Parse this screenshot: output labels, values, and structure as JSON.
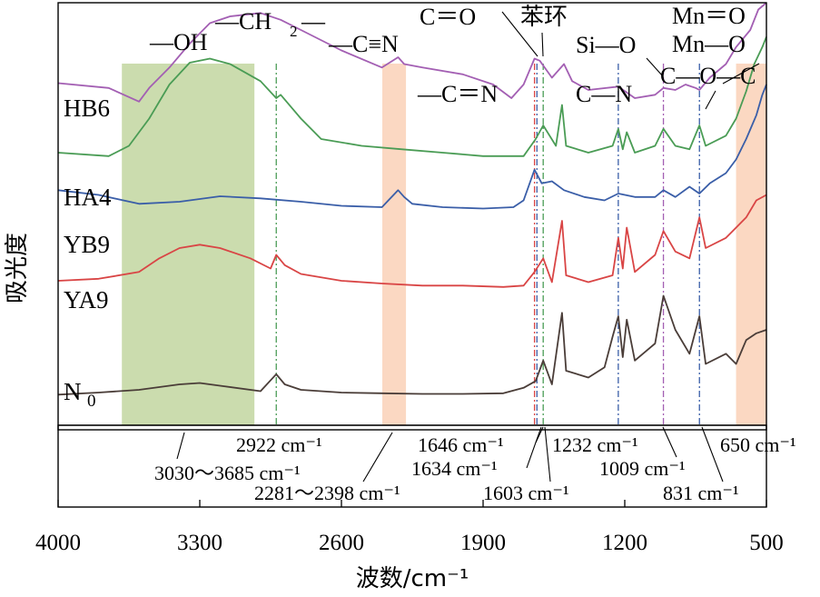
{
  "chart_data": {
    "type": "line",
    "title": "",
    "xlabel": "波数/cm⁻¹",
    "ylabel": "吸光度",
    "x_ticks": [
      4000,
      3300,
      2600,
      1900,
      1200,
      500
    ],
    "x_tick_labels": [
      "4000",
      "3300",
      "2600",
      "1900",
      "1200",
      "500"
    ],
    "xlim": [
      4000,
      500
    ],
    "x_reversed": true,
    "y_units": "arbitrary (offset absorbance)",
    "ylim": [
      0,
      6.2
    ],
    "series": [
      {
        "name": "HB6",
        "label": "HB6",
        "color": "#a35fb3",
        "points": [
          [
            4000,
            5.02
          ],
          [
            3750,
            4.95
          ],
          [
            3600,
            4.75
          ],
          [
            3550,
            4.95
          ],
          [
            3450,
            5.25
          ],
          [
            3350,
            5.6
          ],
          [
            3250,
            5.9
          ],
          [
            3150,
            6.0
          ],
          [
            3000,
            6.05
          ],
          [
            2900,
            5.95
          ],
          [
            2800,
            5.8
          ],
          [
            2600,
            5.5
          ],
          [
            2400,
            5.25
          ],
          [
            2320,
            5.4
          ],
          [
            2290,
            5.3
          ],
          [
            2200,
            5.25
          ],
          [
            2000,
            5.15
          ],
          [
            1850,
            5.0
          ],
          [
            1760,
            4.8
          ],
          [
            1700,
            5.0
          ],
          [
            1646,
            5.38
          ],
          [
            1620,
            5.35
          ],
          [
            1560,
            5.1
          ],
          [
            1500,
            5.3
          ],
          [
            1460,
            5.05
          ],
          [
            1380,
            4.92
          ],
          [
            1232,
            4.97
          ],
          [
            1150,
            4.8
          ],
          [
            1050,
            4.85
          ],
          [
            1009,
            4.95
          ],
          [
            950,
            4.92
          ],
          [
            900,
            5.0
          ],
          [
            850,
            4.95
          ],
          [
            831,
            4.92
          ],
          [
            780,
            5.1
          ],
          [
            700,
            5.3
          ],
          [
            650,
            5.55
          ],
          [
            580,
            5.8
          ],
          [
            540,
            6.1
          ],
          [
            500,
            6.2
          ]
        ]
      },
      {
        "name": "HA4",
        "label": "HA4",
        "color": "#4a9c55",
        "points": [
          [
            4000,
            4.0
          ],
          [
            3750,
            3.95
          ],
          [
            3650,
            4.1
          ],
          [
            3550,
            4.5
          ],
          [
            3450,
            5.0
          ],
          [
            3350,
            5.32
          ],
          [
            3250,
            5.38
          ],
          [
            3150,
            5.3
          ],
          [
            3000,
            5.05
          ],
          [
            2922,
            4.8
          ],
          [
            2900,
            4.85
          ],
          [
            2800,
            4.5
          ],
          [
            2700,
            4.2
          ],
          [
            2500,
            4.1
          ],
          [
            2300,
            4.05
          ],
          [
            2100,
            4.0
          ],
          [
            1900,
            3.95
          ],
          [
            1700,
            3.95
          ],
          [
            1640,
            4.2
          ],
          [
            1603,
            4.4
          ],
          [
            1540,
            4.1
          ],
          [
            1510,
            4.7
          ],
          [
            1490,
            4.1
          ],
          [
            1380,
            4.0
          ],
          [
            1260,
            4.1
          ],
          [
            1232,
            4.35
          ],
          [
            1210,
            4.05
          ],
          [
            1190,
            4.3
          ],
          [
            1150,
            4.0
          ],
          [
            1050,
            4.1
          ],
          [
            1009,
            4.35
          ],
          [
            950,
            4.1
          ],
          [
            880,
            4.05
          ],
          [
            831,
            4.4
          ],
          [
            800,
            4.1
          ],
          [
            700,
            4.25
          ],
          [
            650,
            4.5
          ],
          [
            600,
            4.9
          ],
          [
            560,
            5.3
          ],
          [
            520,
            5.55
          ],
          [
            500,
            5.7
          ]
        ]
      },
      {
        "name": "YB9",
        "label": "YB9",
        "color": "#3a5ea8",
        "points": [
          [
            4000,
            3.45
          ],
          [
            3800,
            3.38
          ],
          [
            3600,
            3.25
          ],
          [
            3400,
            3.28
          ],
          [
            3200,
            3.36
          ],
          [
            3000,
            3.33
          ],
          [
            2800,
            3.28
          ],
          [
            2600,
            3.22
          ],
          [
            2400,
            3.2
          ],
          [
            2320,
            3.45
          ],
          [
            2290,
            3.35
          ],
          [
            2250,
            3.25
          ],
          [
            2100,
            3.2
          ],
          [
            1900,
            3.18
          ],
          [
            1750,
            3.2
          ],
          [
            1700,
            3.3
          ],
          [
            1646,
            3.75
          ],
          [
            1610,
            3.55
          ],
          [
            1560,
            3.58
          ],
          [
            1500,
            3.45
          ],
          [
            1400,
            3.35
          ],
          [
            1300,
            3.3
          ],
          [
            1232,
            3.4
          ],
          [
            1150,
            3.35
          ],
          [
            1050,
            3.35
          ],
          [
            1009,
            3.45
          ],
          [
            950,
            3.35
          ],
          [
            880,
            3.5
          ],
          [
            831,
            3.4
          ],
          [
            780,
            3.55
          ],
          [
            700,
            3.7
          ],
          [
            650,
            3.9
          ],
          [
            600,
            4.2
          ],
          [
            550,
            4.55
          ],
          [
            520,
            4.85
          ],
          [
            500,
            5.0
          ]
        ]
      },
      {
        "name": "YA9",
        "label": "YA9",
        "color": "#d94545",
        "points": [
          [
            4000,
            2.12
          ],
          [
            3800,
            2.15
          ],
          [
            3600,
            2.25
          ],
          [
            3500,
            2.45
          ],
          [
            3400,
            2.6
          ],
          [
            3300,
            2.65
          ],
          [
            3200,
            2.6
          ],
          [
            3050,
            2.45
          ],
          [
            2950,
            2.3
          ],
          [
            2922,
            2.5
          ],
          [
            2880,
            2.35
          ],
          [
            2800,
            2.22
          ],
          [
            2600,
            2.12
          ],
          [
            2400,
            2.08
          ],
          [
            2200,
            2.05
          ],
          [
            2000,
            2.05
          ],
          [
            1800,
            2.03
          ],
          [
            1700,
            2.05
          ],
          [
            1646,
            2.25
          ],
          [
            1603,
            2.45
          ],
          [
            1560,
            2.1
          ],
          [
            1510,
            3.0
          ],
          [
            1490,
            2.2
          ],
          [
            1380,
            2.1
          ],
          [
            1260,
            2.2
          ],
          [
            1232,
            2.75
          ],
          [
            1210,
            2.3
          ],
          [
            1190,
            2.9
          ],
          [
            1150,
            2.25
          ],
          [
            1050,
            2.5
          ],
          [
            1009,
            2.85
          ],
          [
            950,
            2.55
          ],
          [
            880,
            2.45
          ],
          [
            831,
            3.05
          ],
          [
            800,
            2.6
          ],
          [
            700,
            2.75
          ],
          [
            650,
            2.9
          ],
          [
            600,
            3.05
          ],
          [
            550,
            3.3
          ],
          [
            500,
            3.38
          ]
        ]
      },
      {
        "name": "N0",
        "label": "N",
        "sub": "0",
        "color": "#4a3d38",
        "points": [
          [
            4000,
            0.45
          ],
          [
            3800,
            0.48
          ],
          [
            3600,
            0.52
          ],
          [
            3400,
            0.6
          ],
          [
            3300,
            0.62
          ],
          [
            3200,
            0.58
          ],
          [
            3000,
            0.5
          ],
          [
            2922,
            0.75
          ],
          [
            2880,
            0.6
          ],
          [
            2800,
            0.52
          ],
          [
            2600,
            0.48
          ],
          [
            2400,
            0.47
          ],
          [
            2200,
            0.46
          ],
          [
            2000,
            0.46
          ],
          [
            1800,
            0.47
          ],
          [
            1700,
            0.55
          ],
          [
            1640,
            0.65
          ],
          [
            1603,
            0.95
          ],
          [
            1560,
            0.6
          ],
          [
            1510,
            1.65
          ],
          [
            1490,
            0.8
          ],
          [
            1380,
            0.7
          ],
          [
            1300,
            0.85
          ],
          [
            1260,
            1.3
          ],
          [
            1232,
            1.6
          ],
          [
            1210,
            1.0
          ],
          [
            1190,
            1.55
          ],
          [
            1150,
            0.95
          ],
          [
            1050,
            1.2
          ],
          [
            1009,
            1.9
          ],
          [
            950,
            1.4
          ],
          [
            880,
            1.05
          ],
          [
            831,
            1.6
          ],
          [
            800,
            0.9
          ],
          [
            700,
            1.05
          ],
          [
            650,
            0.9
          ],
          [
            600,
            1.25
          ],
          [
            550,
            1.35
          ],
          [
            500,
            1.4
          ]
        ]
      }
    ],
    "highlight_bands": [
      {
        "from": 3685,
        "to": 3030,
        "color": "#cbdcae",
        "label": "3030～3685 cm⁻¹"
      },
      {
        "from": 2398,
        "to": 2281,
        "color": "#fbd8c2",
        "label": "2281～2398 cm⁻¹"
      },
      {
        "from": 650,
        "to": 500,
        "color": "#fbd8c2",
        "label": "650 cm⁻¹"
      }
    ],
    "reference_lines": [
      {
        "x": 2922,
        "color": "#4a9c55",
        "label": "2922 cm⁻¹"
      },
      {
        "x": 1646,
        "color": "#d94545",
        "label": "1646 cm⁻¹"
      },
      {
        "x": 1634,
        "color": "#3a5ea8",
        "label": "1634 cm⁻¹"
      },
      {
        "x": 1603,
        "color": "#4a9c55",
        "label": "1603 cm⁻¹"
      },
      {
        "x": 1232,
        "color": "#3a5ea8",
        "label": "1232 cm⁻¹"
      },
      {
        "x": 1009,
        "color": "#a35fb3",
        "label": "1009 cm⁻¹"
      },
      {
        "x": 831,
        "color": "#3a5ea8",
        "label": "831 cm⁻¹"
      }
    ],
    "group_labels": [
      "—OH",
      "—CH",
      "—C≡N",
      "—C＝N",
      "C＝O",
      "苯环",
      "Si—O",
      "C—N",
      "Mn＝O",
      "Mn—O",
      "C—O—C"
    ],
    "ch2_subscript": "2",
    "ch2_tail": "—"
  }
}
